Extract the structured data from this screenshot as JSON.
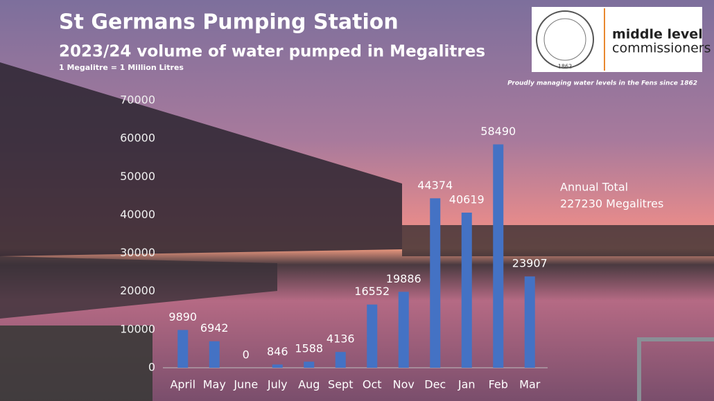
{
  "chart_data": {
    "type": "bar",
    "title": "St Germans Pumping Station",
    "subtitle": "2023/24 volume of water pumped in Megalitres",
    "note": "1 Megalitre = 1 Million Litres",
    "annotations": [
      "Annual Total",
      "227230 Megalitres"
    ],
    "categories": [
      "April",
      "May",
      "June",
      "July",
      "Aug",
      "Sept",
      "Oct",
      "Nov",
      "Dec",
      "Jan",
      "Feb",
      "Mar"
    ],
    "values": [
      9890,
      6942,
      0,
      846,
      1588,
      4136,
      16552,
      19886,
      44374,
      40619,
      58490,
      23907
    ],
    "color": "#4472c4",
    "ylim": [
      0,
      70000
    ],
    "yticks": [
      0,
      10000,
      20000,
      30000,
      40000,
      50000,
      60000,
      70000
    ],
    "grid": false
  },
  "logo": {
    "name_line1": "middle level",
    "name_line2": "commissioners",
    "seal_year": "1862",
    "tagline": "Proudly managing water levels in the Fens since 1862"
  }
}
